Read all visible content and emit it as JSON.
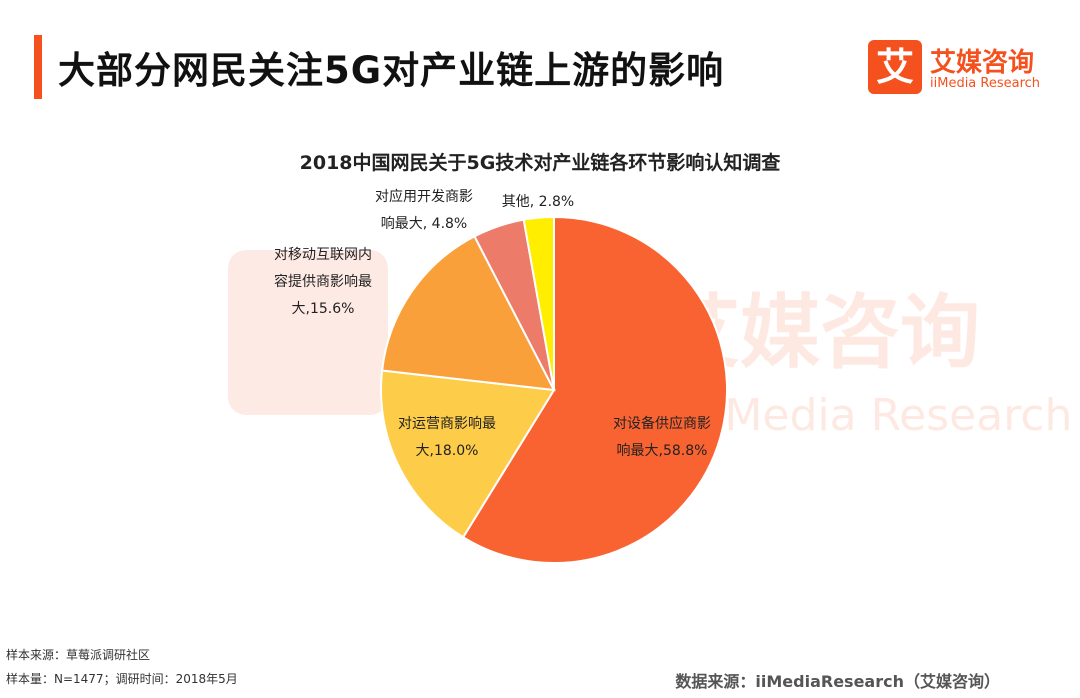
{
  "header": {
    "title": "大部分网民关注5G对产业链上游的影响",
    "logo_cn": "艾媒咨询",
    "logo_en": "iiMedia Research",
    "logo_mark": "艾"
  },
  "colors": {
    "accent": "#f4511e"
  },
  "chart_data": {
    "type": "pie",
    "title": "2018中国网民关于5G技术对产业链各环节影响认知调查",
    "slices": [
      {
        "name": "对设备供应商影响最大",
        "value": 58.8,
        "label_lines": [
          "对设备供应商影",
          "响最大,58.8%"
        ],
        "color": "#f96332"
      },
      {
        "name": "对运营商影响最大",
        "value": 18.0,
        "label_lines": [
          "对运营商影响最",
          "大,18.0%"
        ],
        "color": "#fdcc48"
      },
      {
        "name": "对移动互联网内容提供商影响最大",
        "value": 15.6,
        "label_lines": [
          "对移动互联网内",
          "容提供商影响最",
          "大,15.6%"
        ],
        "color": "#f9a03b"
      },
      {
        "name": "对应用开发商影响最大",
        "value": 4.8,
        "label_lines": [
          "对应用开发商影",
          "响最大, 4.8%"
        ],
        "color": "#ec7b6a"
      },
      {
        "name": "其他",
        "value": 2.8,
        "label_lines": [
          "其他, 2.8%"
        ],
        "color": "#ffee00"
      }
    ]
  },
  "footer": {
    "sample_source": "样本来源：草莓派调研社区",
    "sample_size": "样本量：N=1477；调研时间：2018年5月",
    "data_source": "数据来源：iiMediaResearch（艾媒咨询）"
  }
}
